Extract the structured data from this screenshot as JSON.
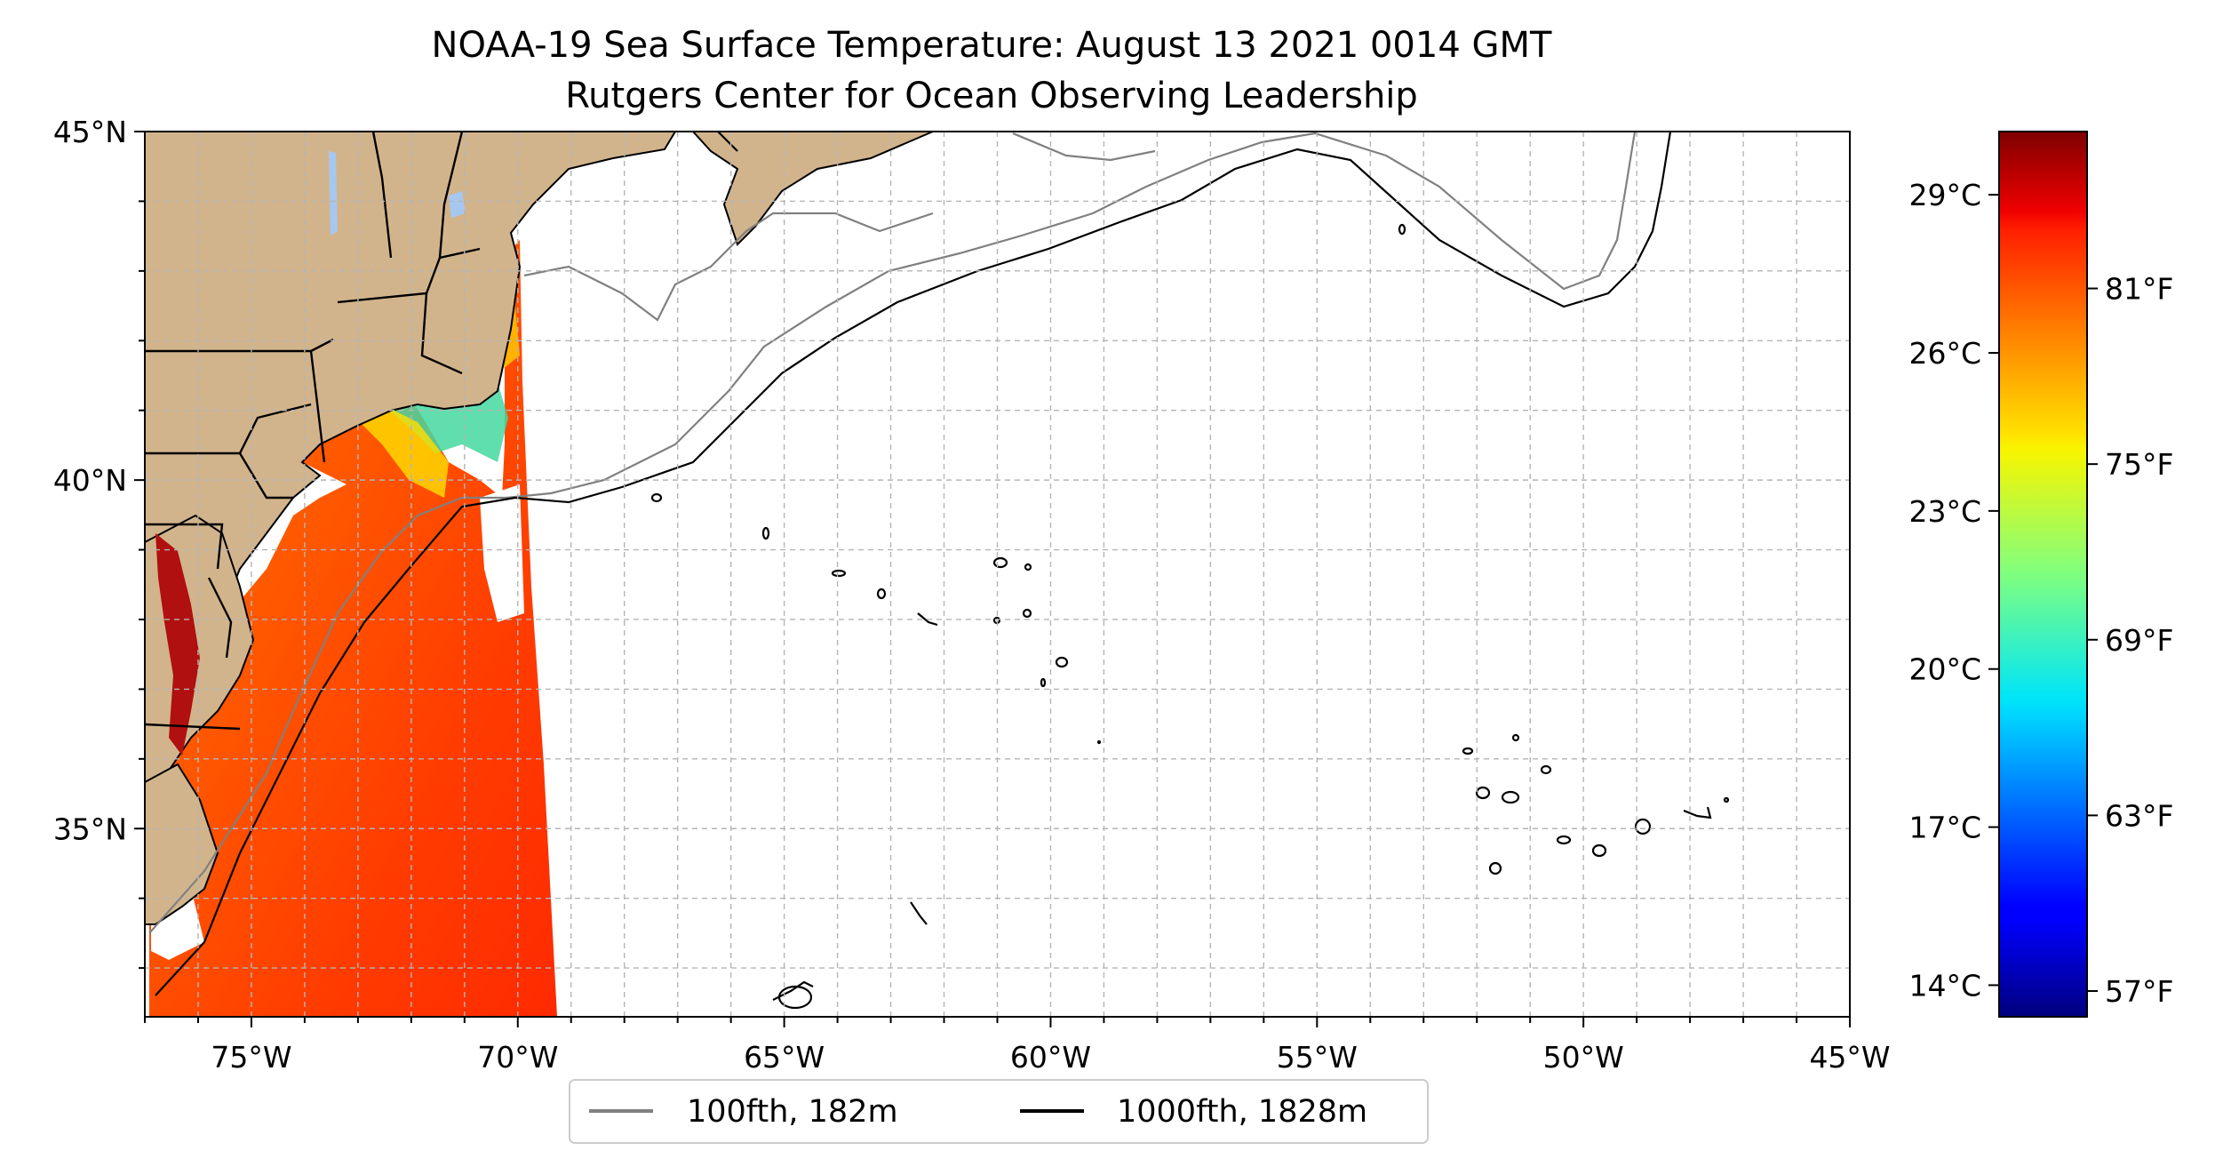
{
  "title": "NOAA-19 Sea Surface Temperature: August 13 2021 0014 GMT",
  "subtitle": "Rutgers Center for Ocean Observing Leadership",
  "map": {
    "lat_range": [
      32.3,
      45
    ],
    "lon_range": [
      -77,
      -45
    ],
    "land_color": "#d2b48c",
    "lake_color": "#a6c8f0",
    "grid": "dashed",
    "lat_ticks": [
      {
        "value": 45,
        "label": "45°N"
      },
      {
        "value": 40,
        "label": "40°N"
      },
      {
        "value": 35,
        "label": "35°N"
      }
    ],
    "lon_ticks": [
      {
        "value": -75,
        "label": "75°W"
      },
      {
        "value": -70,
        "label": "70°W"
      },
      {
        "value": -65,
        "label": "65°W"
      },
      {
        "value": -60,
        "label": "60°W"
      },
      {
        "value": -55,
        "label": "55°W"
      },
      {
        "value": -50,
        "label": "50°W"
      },
      {
        "value": -45,
        "label": "45°W"
      }
    ],
    "minor_lon_step": 1,
    "minor_lat_step": 1
  },
  "colorbar": {
    "colormap": "jet",
    "range_c": [
      13.4,
      30.2
    ],
    "celsius_labels": [
      "29°C",
      "26°C",
      "23°C",
      "20°C",
      "17°C",
      "14°C"
    ],
    "celsius_values": [
      29,
      26,
      23,
      20,
      17,
      14
    ],
    "fahrenheit_labels": [
      "81°F",
      "75°F",
      "69°F",
      "63°F",
      "57°F"
    ],
    "fahrenheit_values": [
      81,
      75,
      69,
      63,
      57
    ]
  },
  "legend": {
    "position": "bottom-center",
    "items": [
      {
        "label": "100fth, 182m",
        "color": "#808080"
      },
      {
        "label": "1000fth, 1828m",
        "color": "#000000"
      }
    ]
  }
}
